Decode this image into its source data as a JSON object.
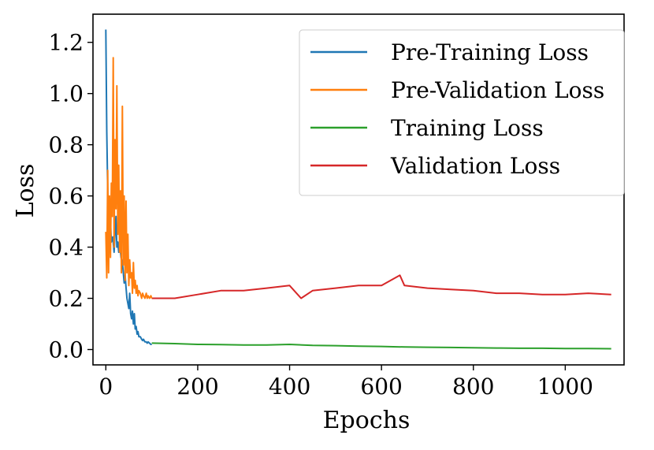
{
  "chart_data": {
    "type": "line",
    "title": "",
    "xlabel": "Epochs",
    "ylabel": "Loss",
    "xlim": [
      -28,
      1128
    ],
    "ylim": [
      -0.06,
      1.31
    ],
    "xticks": [
      0,
      200,
      400,
      600,
      800,
      1000
    ],
    "xtick_labels": [
      "0",
      "200",
      "400",
      "600",
      "800",
      "1000"
    ],
    "yticks": [
      0.0,
      0.2,
      0.4,
      0.6,
      0.8,
      1.0,
      1.2
    ],
    "ytick_labels": [
      "0.0",
      "0.2",
      "0.4",
      "0.6",
      "0.8",
      "1.0",
      "1.2"
    ],
    "grid": false,
    "legend_position": "top-right",
    "series": [
      {
        "name": "Pre-Training Loss",
        "color": "#1f77b4",
        "x": [
          0,
          2,
          4,
          6,
          8,
          10,
          12,
          15,
          18,
          20,
          22,
          24,
          26,
          28,
          30,
          33,
          36,
          38,
          40,
          42,
          44,
          46,
          48,
          50,
          52,
          54,
          56,
          58,
          60,
          62,
          64,
          66,
          68,
          70,
          72,
          75,
          78,
          80,
          82,
          85,
          88,
          90,
          92,
          95,
          98,
          100
        ],
        "y": [
          1.25,
          0.85,
          0.62,
          0.55,
          0.48,
          0.5,
          0.42,
          0.44,
          0.38,
          0.46,
          0.52,
          0.4,
          0.42,
          0.38,
          0.42,
          0.36,
          0.34,
          0.3,
          0.26,
          0.29,
          0.24,
          0.2,
          0.18,
          0.16,
          0.22,
          0.14,
          0.12,
          0.15,
          0.1,
          0.14,
          0.08,
          0.09,
          0.06,
          0.07,
          0.05,
          0.05,
          0.04,
          0.035,
          0.04,
          0.03,
          0.03,
          0.025,
          0.03,
          0.025,
          0.02,
          0.02
        ]
      },
      {
        "name": "Pre-Validation Loss",
        "color": "#ff7f0e",
        "x": [
          0,
          2,
          4,
          6,
          8,
          10,
          12,
          14,
          16,
          18,
          20,
          22,
          24,
          26,
          28,
          30,
          32,
          34,
          36,
          38,
          40,
          42,
          44,
          46,
          48,
          50,
          52,
          54,
          56,
          58,
          60,
          62,
          64,
          66,
          68,
          70,
          72,
          75,
          78,
          80,
          82,
          85,
          88,
          90,
          92,
          95,
          98,
          100
        ],
        "y": [
          0.46,
          0.28,
          0.7,
          0.3,
          0.6,
          0.36,
          0.65,
          0.52,
          1.14,
          0.4,
          0.82,
          0.55,
          1.03,
          0.45,
          0.72,
          0.38,
          0.62,
          0.3,
          0.95,
          0.33,
          0.6,
          0.27,
          0.58,
          0.3,
          0.45,
          0.25,
          0.35,
          0.28,
          0.3,
          0.22,
          0.34,
          0.24,
          0.27,
          0.22,
          0.25,
          0.21,
          0.23,
          0.22,
          0.2,
          0.22,
          0.21,
          0.2,
          0.22,
          0.2,
          0.21,
          0.2,
          0.21,
          0.2
        ]
      },
      {
        "name": "Training Loss",
        "color": "#2ca02c",
        "x": [
          100,
          150,
          200,
          250,
          300,
          350,
          400,
          450,
          500,
          550,
          600,
          650,
          700,
          750,
          800,
          850,
          900,
          950,
          1000,
          1050,
          1100
        ],
        "y": [
          0.025,
          0.023,
          0.02,
          0.019,
          0.018,
          0.018,
          0.02,
          0.016,
          0.015,
          0.013,
          0.012,
          0.01,
          0.009,
          0.008,
          0.007,
          0.006,
          0.005,
          0.005,
          0.004,
          0.004,
          0.003
        ]
      },
      {
        "name": "Validation Loss",
        "color": "#d62728",
        "x": [
          100,
          150,
          200,
          250,
          300,
          350,
          400,
          425,
          450,
          500,
          550,
          600,
          640,
          650,
          700,
          750,
          800,
          850,
          900,
          950,
          1000,
          1050,
          1100
        ],
        "y": [
          0.2,
          0.2,
          0.215,
          0.23,
          0.23,
          0.24,
          0.25,
          0.2,
          0.23,
          0.24,
          0.25,
          0.25,
          0.29,
          0.25,
          0.24,
          0.235,
          0.23,
          0.22,
          0.22,
          0.215,
          0.215,
          0.22,
          0.215
        ]
      }
    ]
  }
}
